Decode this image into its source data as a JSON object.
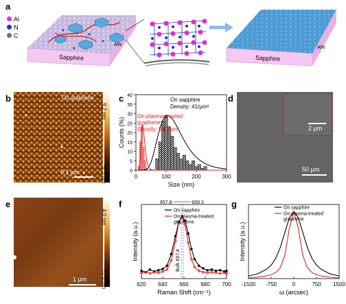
{
  "panel_labels": {
    "a": "a",
    "b": "b",
    "c": "c",
    "d": "d",
    "e": "e",
    "f": "f",
    "g": "g"
  },
  "panel_a": {
    "legend": [
      {
        "label": "Al",
        "color": "#e030c8"
      },
      {
        "label": "N",
        "color": "#2030d8"
      },
      {
        "label": "C",
        "color": "#707070"
      }
    ],
    "substrate_left": "Sapphire",
    "substrate_right": "Sapphire",
    "aln_left": "AlN",
    "aln_right": "AlN"
  },
  "panel_b": {
    "inset": "On graphene",
    "scale_bar": "0.1 μm",
    "colorbar_max": "9.2 nm",
    "colorbar_min": "-9.5 nm"
  },
  "panel_d": {
    "inset_scale": "2 μm",
    "scale_bar": "50 μm"
  },
  "panel_e": {
    "scale_bar": "1 μm",
    "colorbar_max": "4.0 nm",
    "colorbar_min": "-1.0 nm"
  },
  "panel_f_annot": {
    "peak_1": "657.8",
    "peak_2": "659.3",
    "bulk": "Bulk 657.4"
  },
  "colors": {
    "black_series": "#000000",
    "red_series": "#e02020",
    "sapphire": "#f4c8f0",
    "graphene_blue": "#5aa8e0"
  },
  "chart_data": [
    {
      "id": "c",
      "type": "bar",
      "xlabel": "Size (nm)",
      "ylabel": "Counts (%)",
      "xlim": [
        0,
        300
      ],
      "ylim": [
        0,
        40
      ],
      "xticks": [
        "0",
        "100",
        "200",
        "300"
      ],
      "yticks": [
        "0",
        "5",
        "10",
        "15",
        "20",
        "25",
        "30",
        "35",
        "40"
      ],
      "series": [
        {
          "name": "On sapphire",
          "density": "Density: 41/μm²",
          "color": "#000000",
          "x": [
            70,
            80,
            90,
            100,
            110,
            120,
            130,
            140,
            150,
            160,
            170,
            180,
            190,
            200,
            210,
            220,
            230
          ],
          "values": [
            6,
            15,
            26,
            29,
            23,
            18,
            12,
            9,
            6,
            8,
            5,
            3,
            5,
            2,
            3,
            1,
            2
          ]
        },
        {
          "name": "On plasma-treated graphene",
          "density": "Density: 532/μm²",
          "color": "#e02020",
          "x": [
            10,
            15,
            20,
            25,
            30,
            35
          ],
          "values": [
            2,
            15,
            24,
            12,
            5,
            1
          ]
        }
      ],
      "legend": {
        "sapphire_label": "On sapphire",
        "sapphire_density": "Density: 41/μm²",
        "red_label_1": "On plasma-treated",
        "red_label_2": "graphene",
        "red_density": "Density: 532/μm²"
      }
    },
    {
      "id": "f",
      "type": "line",
      "xlabel": "Raman Shift (cm⁻¹)",
      "ylabel": "Intensity (a.u.)",
      "xlim": [
        620,
        700
      ],
      "ylim": [
        0,
        1.15
      ],
      "xticks": [
        "620",
        "640",
        "660",
        "680",
        "700"
      ],
      "series": [
        {
          "name": "On sapphire",
          "color": "#000000",
          "x": [
            620,
            624,
            628,
            632,
            636,
            640,
            644,
            648,
            652,
            655,
            658,
            661,
            664,
            667,
            670,
            674,
            678,
            682,
            686,
            690,
            694,
            698,
            700
          ],
          "values": [
            0.12,
            0.1,
            0.14,
            0.11,
            0.13,
            0.15,
            0.2,
            0.38,
            0.66,
            0.88,
            0.97,
            0.9,
            0.7,
            0.46,
            0.3,
            0.2,
            0.16,
            0.13,
            0.14,
            0.12,
            0.13,
            0.11,
            0.12
          ]
        },
        {
          "name": "On plasma-treated graphene",
          "color": "#e02020",
          "x": [
            620,
            624,
            628,
            632,
            636,
            640,
            644,
            648,
            652,
            655,
            658,
            661,
            664,
            667,
            670,
            674,
            678,
            682,
            686,
            690,
            694,
            698,
            700
          ],
          "values": [
            0.09,
            0.1,
            0.08,
            0.1,
            0.09,
            0.11,
            0.14,
            0.28,
            0.58,
            0.86,
            0.96,
            0.84,
            0.56,
            0.3,
            0.18,
            0.12,
            0.1,
            0.09,
            0.1,
            0.09,
            0.08,
            0.09,
            0.08
          ]
        }
      ],
      "legend": {
        "s1": "On sapphire",
        "s2_line1": "On plasma-treated",
        "s2_line2": "graphene"
      }
    },
    {
      "id": "g",
      "type": "line",
      "xlabel": "ω (arcsec)",
      "ylabel": "Intensity (a.u.)",
      "xlim": [
        -1500,
        1500
      ],
      "ylim": [
        0,
        1.1
      ],
      "xticks": [
        "-1500",
        "-750",
        "0",
        "750",
        "1500"
      ],
      "series": [
        {
          "name": "On sapphire",
          "color": "#000000",
          "x": [
            -1500,
            -1200,
            -900,
            -750,
            -600,
            -450,
            -300,
            -150,
            0,
            150,
            300,
            450,
            600,
            750,
            900,
            1200,
            1500
          ],
          "values": [
            0.04,
            0.07,
            0.14,
            0.2,
            0.3,
            0.46,
            0.68,
            0.9,
            1.0,
            0.9,
            0.68,
            0.46,
            0.3,
            0.2,
            0.14,
            0.07,
            0.04
          ]
        },
        {
          "name": "On plasma-treated graphene",
          "color": "#e02020",
          "x": [
            -1500,
            -1200,
            -900,
            -750,
            -600,
            -450,
            -300,
            -150,
            0,
            150,
            300,
            450,
            600,
            750,
            900,
            1200,
            1500
          ],
          "values": [
            0.01,
            0.02,
            0.04,
            0.06,
            0.09,
            0.16,
            0.34,
            0.74,
            1.0,
            0.74,
            0.34,
            0.16,
            0.09,
            0.06,
            0.04,
            0.02,
            0.01
          ]
        }
      ],
      "legend": {
        "s1": "On sapphire",
        "s2_line1": "On plasma-treated",
        "s2_line2": "graphene"
      }
    }
  ]
}
